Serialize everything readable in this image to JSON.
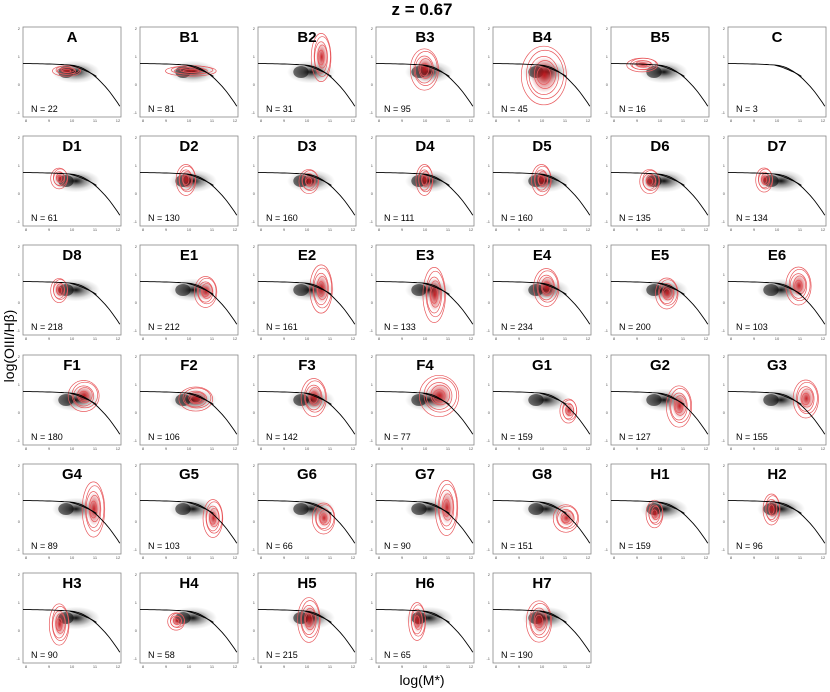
{
  "chart_data": {
    "type": "scatter",
    "title": "z = 0.67",
    "xlabel": "log(M*)",
    "ylabel": "log(OIII/Hβ)",
    "xlim": [
      8,
      12
    ],
    "ylim": [
      -1,
      2
    ],
    "x_ticks": [
      "8",
      "9",
      "10",
      "11",
      "12"
    ],
    "y_ticks": [
      "-1",
      "0",
      "1",
      "2"
    ],
    "grid": false,
    "panels": [
      {
        "label": "A",
        "n": "N = 22",
        "center": [
          9.8,
          0.55
        ],
        "spread": [
          0.5,
          0.15
        ]
      },
      {
        "label": "B1",
        "n": "N = 81",
        "center": [
          10.1,
          0.55
        ],
        "spread": [
          0.9,
          0.15
        ]
      },
      {
        "label": "B2",
        "n": "N = 31",
        "center": [
          10.6,
          1.0
        ],
        "spread": [
          0.35,
          0.7
        ]
      },
      {
        "label": "B3",
        "n": "N = 95",
        "center": [
          10.0,
          0.6
        ],
        "spread": [
          0.5,
          0.6
        ]
      },
      {
        "label": "B4",
        "n": "N = 45",
        "center": [
          10.1,
          0.4
        ],
        "spread": [
          0.8,
          0.85
        ]
      },
      {
        "label": "B5",
        "n": "N = 16",
        "center": [
          9.3,
          0.75
        ],
        "spread": [
          0.55,
          0.2
        ]
      },
      {
        "label": "C",
        "n": "N = 3",
        "center": null,
        "spread": null
      },
      {
        "label": "D1",
        "n": "N = 61",
        "center": [
          9.5,
          0.6
        ],
        "spread": [
          0.3,
          0.3
        ]
      },
      {
        "label": "D2",
        "n": "N = 130",
        "center": [
          9.9,
          0.55
        ],
        "spread": [
          0.35,
          0.45
        ]
      },
      {
        "label": "D3",
        "n": "N = 160",
        "center": [
          10.1,
          0.5
        ],
        "spread": [
          0.35,
          0.35
        ]
      },
      {
        "label": "D4",
        "n": "N = 111",
        "center": [
          10.0,
          0.55
        ],
        "spread": [
          0.3,
          0.45
        ]
      },
      {
        "label": "D5",
        "n": "N = 160",
        "center": [
          10.0,
          0.55
        ],
        "spread": [
          0.35,
          0.45
        ]
      },
      {
        "label": "D6",
        "n": "N = 135",
        "center": [
          9.6,
          0.5
        ],
        "spread": [
          0.35,
          0.35
        ]
      },
      {
        "label": "D7",
        "n": "N = 134",
        "center": [
          9.5,
          0.55
        ],
        "spread": [
          0.3,
          0.35
        ]
      },
      {
        "label": "D8",
        "n": "N = 218",
        "center": [
          9.5,
          0.5
        ],
        "spread": [
          0.3,
          0.35
        ]
      },
      {
        "label": "E1",
        "n": "N = 212",
        "center": [
          10.7,
          0.45
        ],
        "spread": [
          0.4,
          0.45
        ]
      },
      {
        "label": "E2",
        "n": "N = 161",
        "center": [
          10.6,
          0.55
        ],
        "spread": [
          0.4,
          0.7
        ]
      },
      {
        "label": "E3",
        "n": "N = 133",
        "center": [
          10.4,
          0.35
        ],
        "spread": [
          0.4,
          0.8
        ]
      },
      {
        "label": "E4",
        "n": "N = 234",
        "center": [
          10.2,
          0.6
        ],
        "spread": [
          0.45,
          0.55
        ]
      },
      {
        "label": "E5",
        "n": "N = 200",
        "center": [
          10.3,
          0.4
        ],
        "spread": [
          0.4,
          0.45
        ]
      },
      {
        "label": "E6",
        "n": "N = 103",
        "center": [
          10.9,
          0.65
        ],
        "spread": [
          0.45,
          0.55
        ]
      },
      {
        "label": "F1",
        "n": "N = 180",
        "center": [
          10.5,
          0.65
        ],
        "spread": [
          0.55,
          0.45
        ]
      },
      {
        "label": "F2",
        "n": "N = 106",
        "center": [
          10.3,
          0.55
        ],
        "spread": [
          0.6,
          0.35
        ]
      },
      {
        "label": "F3",
        "n": "N = 142",
        "center": [
          10.3,
          0.6
        ],
        "spread": [
          0.45,
          0.55
        ]
      },
      {
        "label": "F4",
        "n": "N = 77",
        "center": [
          10.6,
          0.65
        ],
        "spread": [
          0.7,
          0.6
        ]
      },
      {
        "label": "G1",
        "n": "N = 159",
        "center": [
          11.1,
          0.15
        ],
        "spread": [
          0.3,
          0.35
        ]
      },
      {
        "label": "G2",
        "n": "N = 127",
        "center": [
          10.8,
          0.3
        ],
        "spread": [
          0.45,
          0.6
        ]
      },
      {
        "label": "G3",
        "n": "N = 155",
        "center": [
          11.2,
          0.55
        ],
        "spread": [
          0.45,
          0.55
        ]
      },
      {
        "label": "G4",
        "n": "N = 89",
        "center": [
          10.9,
          0.5
        ],
        "spread": [
          0.4,
          0.8
        ]
      },
      {
        "label": "G5",
        "n": "N = 103",
        "center": [
          11.0,
          0.2
        ],
        "spread": [
          0.35,
          0.55
        ]
      },
      {
        "label": "G6",
        "n": "N = 66",
        "center": [
          10.7,
          0.2
        ],
        "spread": [
          0.4,
          0.45
        ]
      },
      {
        "label": "G7",
        "n": "N = 90",
        "center": [
          10.9,
          0.55
        ],
        "spread": [
          0.4,
          0.8
        ]
      },
      {
        "label": "G8",
        "n": "N = 151",
        "center": [
          11.0,
          0.2
        ],
        "spread": [
          0.45,
          0.4
        ]
      },
      {
        "label": "H1",
        "n": "N = 159",
        "center": [
          9.8,
          0.35
        ],
        "spread": [
          0.3,
          0.4
        ]
      },
      {
        "label": "H2",
        "n": "N = 96",
        "center": [
          9.8,
          0.5
        ],
        "spread": [
          0.3,
          0.45
        ]
      },
      {
        "label": "H3",
        "n": "N = 90",
        "center": [
          9.5,
          0.3
        ],
        "spread": [
          0.35,
          0.6
        ]
      },
      {
        "label": "H4",
        "n": "N = 58",
        "center": [
          9.5,
          0.4
        ],
        "spread": [
          0.3,
          0.25
        ]
      },
      {
        "label": "H5",
        "n": "N = 215",
        "center": [
          10.1,
          0.45
        ],
        "spread": [
          0.4,
          0.65
        ]
      },
      {
        "label": "H6",
        "n": "N = 65",
        "center": [
          9.7,
          0.4
        ],
        "spread": [
          0.3,
          0.55
        ]
      },
      {
        "label": "H7",
        "n": "N = 190",
        "center": [
          9.9,
          0.4
        ],
        "spread": [
          0.45,
          0.6
        ]
      }
    ],
    "background": {
      "center": [
        10.0,
        0.5
      ],
      "spread": [
        0.7,
        0.25
      ]
    },
    "colors": {
      "contour": "#e8585c",
      "core": "#c4161c",
      "background": "#000000",
      "line": "#000000",
      "frame": "#888888"
    }
  }
}
